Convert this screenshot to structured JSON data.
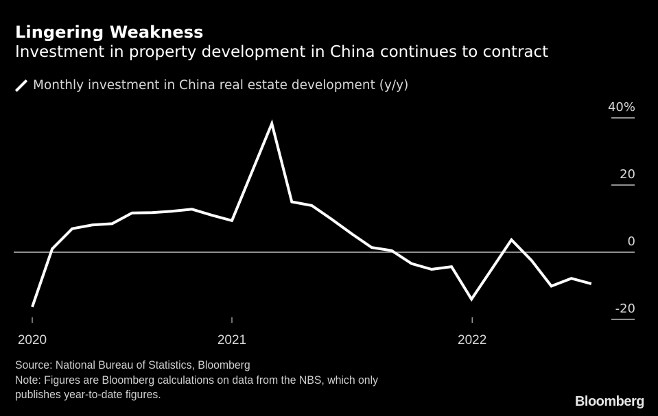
{
  "header": {
    "title": "Lingering Weakness",
    "subtitle": "Investment in property development in China continues to contract"
  },
  "legend": {
    "label": "Monthly investment in China real estate development (y/y)",
    "icon": "line-swatch-icon"
  },
  "footer": {
    "source": "Source: National Bureau of Statistics, Bloomberg",
    "note_line1": "Note: Figures are Bloomberg calculations on data from the NBS, which only",
    "note_line2": "publishes year-to-date figures.",
    "brand": "Bloomberg"
  },
  "colors": {
    "background": "#000000",
    "line": "#ffffff",
    "axis": "#bfbfbf"
  },
  "chart_data": {
    "type": "line",
    "title": "Lingering Weakness",
    "subtitle": "Investment in property development in China continues to contract",
    "xlabel": "",
    "ylabel": "",
    "y_unit": "%",
    "ylim": [
      -20,
      40
    ],
    "yticks": [
      {
        "value": 40,
        "label": "40%"
      },
      {
        "value": 20,
        "label": "20"
      },
      {
        "value": 0,
        "label": "0"
      },
      {
        "value": -20,
        "label": "-20"
      }
    ],
    "xticks": [
      {
        "month_index": 2,
        "label": "2020"
      },
      {
        "month_index": 12,
        "label": "2021"
      },
      {
        "month_index": 24,
        "label": "2022"
      }
    ],
    "x_unit": "months since Dec 2019",
    "legend_position": "top-left",
    "grid": false,
    "zero_line": true,
    "series": [
      {
        "name": "Monthly investment in China real estate development (y/y)",
        "points": [
          {
            "date": "2020-02",
            "m": 2,
            "value": -16.3
          },
          {
            "date": "2020-03",
            "m": 3,
            "value": 1.0
          },
          {
            "date": "2020-04",
            "m": 4,
            "value": 7.0
          },
          {
            "date": "2020-05",
            "m": 5,
            "value": 8.1
          },
          {
            "date": "2020-06",
            "m": 6,
            "value": 8.5
          },
          {
            "date": "2020-07",
            "m": 7,
            "value": 11.7
          },
          {
            "date": "2020-08",
            "m": 8,
            "value": 11.8
          },
          {
            "date": "2020-09",
            "m": 9,
            "value": 12.2
          },
          {
            "date": "2020-10",
            "m": 10,
            "value": 12.8
          },
          {
            "date": "2020-11",
            "m": 11,
            "value": 11.0
          },
          {
            "date": "2020-12",
            "m": 12,
            "value": 9.4
          },
          {
            "date": "2021-02",
            "m": 14,
            "value": 38.3
          },
          {
            "date": "2021-03",
            "m": 15,
            "value": 15.0
          },
          {
            "date": "2021-04",
            "m": 16,
            "value": 13.9
          },
          {
            "date": "2021-05",
            "m": 17,
            "value": 9.8
          },
          {
            "date": "2021-06",
            "m": 18,
            "value": 5.5
          },
          {
            "date": "2021-07",
            "m": 19,
            "value": 1.4
          },
          {
            "date": "2021-08",
            "m": 20,
            "value": 0.5
          },
          {
            "date": "2021-09",
            "m": 21,
            "value": -3.4
          },
          {
            "date": "2021-10",
            "m": 22,
            "value": -5.1
          },
          {
            "date": "2021-11",
            "m": 23,
            "value": -4.3
          },
          {
            "date": "2021-12",
            "m": 24,
            "value": -14.0
          },
          {
            "date": "2022-02",
            "m": 26,
            "value": 3.7
          },
          {
            "date": "2022-03",
            "m": 27,
            "value": -2.4
          },
          {
            "date": "2022-04",
            "m": 28,
            "value": -10.1
          },
          {
            "date": "2022-05",
            "m": 29,
            "value": -7.8
          },
          {
            "date": "2022-06",
            "m": 30,
            "value": -9.4
          }
        ]
      }
    ]
  }
}
